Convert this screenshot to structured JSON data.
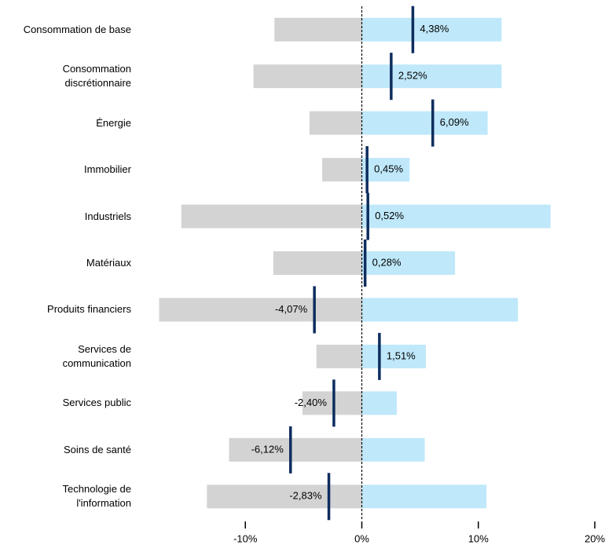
{
  "chart_data": {
    "type": "range_bar",
    "categories": [
      "Consommation de base",
      "Consommation\ndiscrétionnaire",
      "Énergie",
      "Immobilier",
      "Industriels",
      "Matériaux",
      "Produits financiers",
      "Services de\ncommunication",
      "Services public",
      "Soins de santé",
      "Technologie de\nl'information"
    ],
    "series": [
      {
        "color": "#d3d3d3",
        "values": [
          -7.5,
          -9.3,
          -4.5,
          -3.4,
          -15.5,
          -7.6,
          -17.4,
          -3.9,
          -5.1,
          -11.4,
          -13.3
        ]
      },
      {
        "color": "#bfe8fa",
        "values": [
          12.0,
          12.0,
          10.8,
          4.1,
          16.2,
          8.0,
          13.4,
          5.5,
          3.0,
          5.4,
          10.7
        ]
      },
      {
        "color": "#0d2d5e",
        "values": [
          4.38,
          2.52,
          6.09,
          0.45,
          0.52,
          0.28,
          -4.07,
          1.51,
          -2.4,
          -6.12,
          -2.83
        ],
        "value_labels": [
          "4,38%",
          "2,52%",
          "6,09%",
          "0,45%",
          "0,52%",
          "0,28%",
          "-4,07%",
          "1,51%",
          "-2,40%",
          "-6,12%",
          "-2,83%"
        ]
      }
    ],
    "xlim": [
      -20,
      20
    ],
    "xticks": [
      {
        "value": -10,
        "label": "-10%"
      },
      {
        "value": 0,
        "label": "0%"
      },
      {
        "value": 10,
        "label": "10%"
      },
      {
        "value": 20,
        "label": "20%"
      }
    ]
  }
}
